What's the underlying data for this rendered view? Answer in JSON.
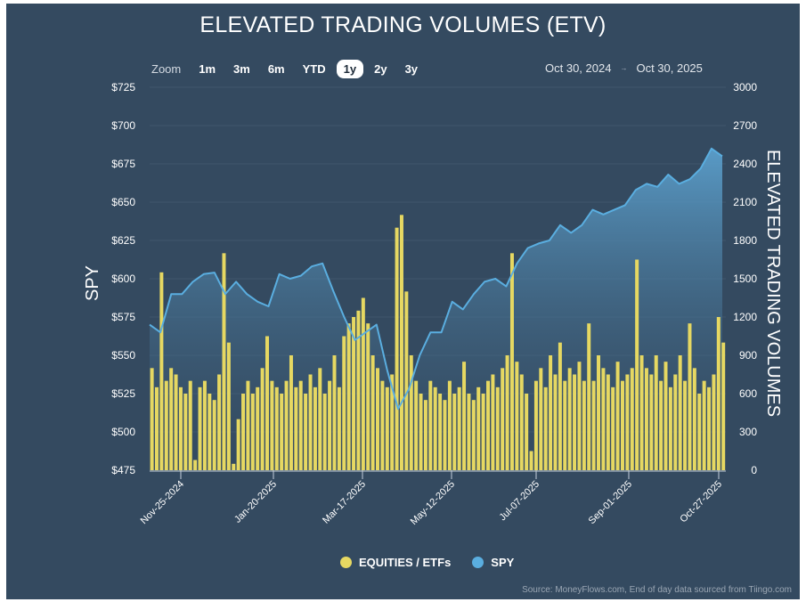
{
  "title": "ELEVATED TRADING VOLUMES (ETV)",
  "zoom": {
    "label": "Zoom",
    "buttons": [
      "1m",
      "3m",
      "6m",
      "YTD",
      "1y",
      "2y",
      "3y"
    ],
    "active": "1y"
  },
  "range": {
    "from": "Oct 30, 2024",
    "to": "Oct 30, 2025"
  },
  "legend": [
    {
      "label": "EQUITIES / ETFs",
      "color": "#e6d862"
    },
    {
      "label": "SPY",
      "color": "#5aaee0"
    }
  ],
  "source": "Source: MoneyFlows.com, End of day data sourced from Tiingo.com",
  "colors": {
    "background": "#344a60",
    "bars": "#e6d862",
    "line": "#5aaee0"
  },
  "chart_data": {
    "type": "bar+area",
    "y_left": {
      "label": "SPY",
      "min": 475,
      "max": 725,
      "ticks": [
        "$475",
        "$500",
        "$525",
        "$550",
        "$575",
        "$600",
        "$625",
        "$650",
        "$675",
        "$700",
        "$725"
      ]
    },
    "y_right": {
      "label": "ELEVATED TRADING VOLUMES",
      "min": 0,
      "max": 3000,
      "ticks": [
        "0",
        "300",
        "600",
        "900",
        "1200",
        "1500",
        "1800",
        "2100",
        "2400",
        "2700",
        "3000"
      ]
    },
    "x_ticks": [
      "Nov-25-2024",
      "Jan-20-2025",
      "Mar-17-2025",
      "May-12-2025",
      "Jul-07-2025",
      "Sep-01-2025",
      "Oct-27-2025"
    ],
    "x_range": [
      "2024-10-30",
      "2025-10-30"
    ],
    "grid": true,
    "legend_position": "bottom",
    "series": [
      {
        "name": "EQUITIES / ETFs",
        "type": "bar",
        "axis": "right",
        "values": [
          800,
          650,
          1550,
          700,
          800,
          750,
          650,
          600,
          700,
          80,
          650,
          700,
          600,
          550,
          750,
          1700,
          1000,
          50,
          400,
          600,
          700,
          600,
          650,
          800,
          1050,
          700,
          650,
          600,
          700,
          900,
          650,
          700,
          600,
          750,
          650,
          800,
          600,
          700,
          900,
          650,
          1050,
          1150,
          1200,
          1250,
          1350,
          1150,
          900,
          800,
          700,
          650,
          750,
          1900,
          2000,
          1400,
          900,
          700,
          600,
          550,
          700,
          650,
          600,
          550,
          700,
          600,
          650,
          850,
          600,
          550,
          650,
          600,
          700,
          750,
          650,
          800,
          900,
          1700,
          850,
          750,
          600,
          150,
          700,
          800,
          650,
          900,
          750,
          1000,
          700,
          800,
          750,
          850,
          700,
          1150,
          700,
          900,
          800,
          750,
          650,
          850,
          700,
          750,
          800,
          1650,
          900,
          800,
          750,
          900,
          700,
          850,
          650,
          750,
          900,
          700,
          1150,
          800,
          600,
          700,
          650,
          750,
          1200,
          1000
        ]
      },
      {
        "name": "SPY",
        "type": "area",
        "axis": "left",
        "values": [
          570,
          565,
          590,
          590,
          598,
          603,
          604,
          590,
          598,
          590,
          585,
          582,
          603,
          600,
          602,
          608,
          610,
          592,
          575,
          560,
          565,
          570,
          540,
          515,
          528,
          550,
          565,
          565,
          585,
          580,
          590,
          598,
          600,
          595,
          610,
          620,
          623,
          625,
          635,
          630,
          635,
          645,
          642,
          645,
          648,
          658,
          662,
          660,
          668,
          662,
          665,
          672,
          685,
          680
        ]
      }
    ]
  }
}
